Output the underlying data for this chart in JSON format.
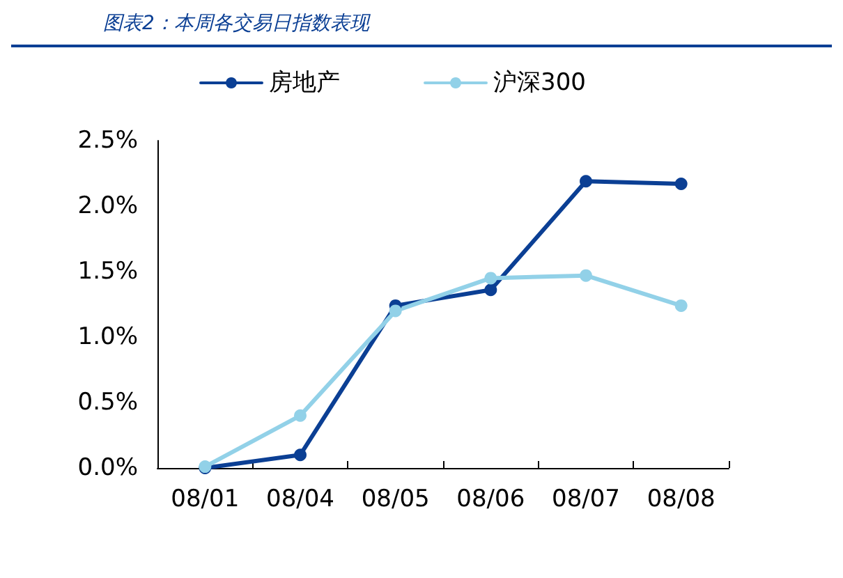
{
  "chart_data": {
    "type": "line",
    "title": "图表2：本周各交易日指数表现",
    "categories": [
      "08/01",
      "08/04",
      "08/05",
      "08/06",
      "08/07",
      "08/08"
    ],
    "series": [
      {
        "name": "房地产",
        "color": "#0b3f94",
        "values": [
          0.0,
          0.1,
          1.24,
          1.36,
          2.19,
          2.17
        ]
      },
      {
        "name": "沪深300",
        "color": "#92d1e8",
        "values": [
          0.01,
          0.4,
          1.2,
          1.45,
          1.47,
          1.24
        ]
      }
    ],
    "ylim": [
      0,
      2.5
    ],
    "yticks": [
      {
        "value": 0,
        "label": "0.0%"
      },
      {
        "value": 0.5,
        "label": "0.5%"
      },
      {
        "value": 1,
        "label": "1.0%"
      },
      {
        "value": 1.5,
        "label": "1.5%"
      },
      {
        "value": 2,
        "label": "2.0%"
      },
      {
        "value": 2.5,
        "label": "2.5%"
      }
    ],
    "grid": false,
    "legend": "top",
    "marker": "circle",
    "line_style": "solid"
  }
}
